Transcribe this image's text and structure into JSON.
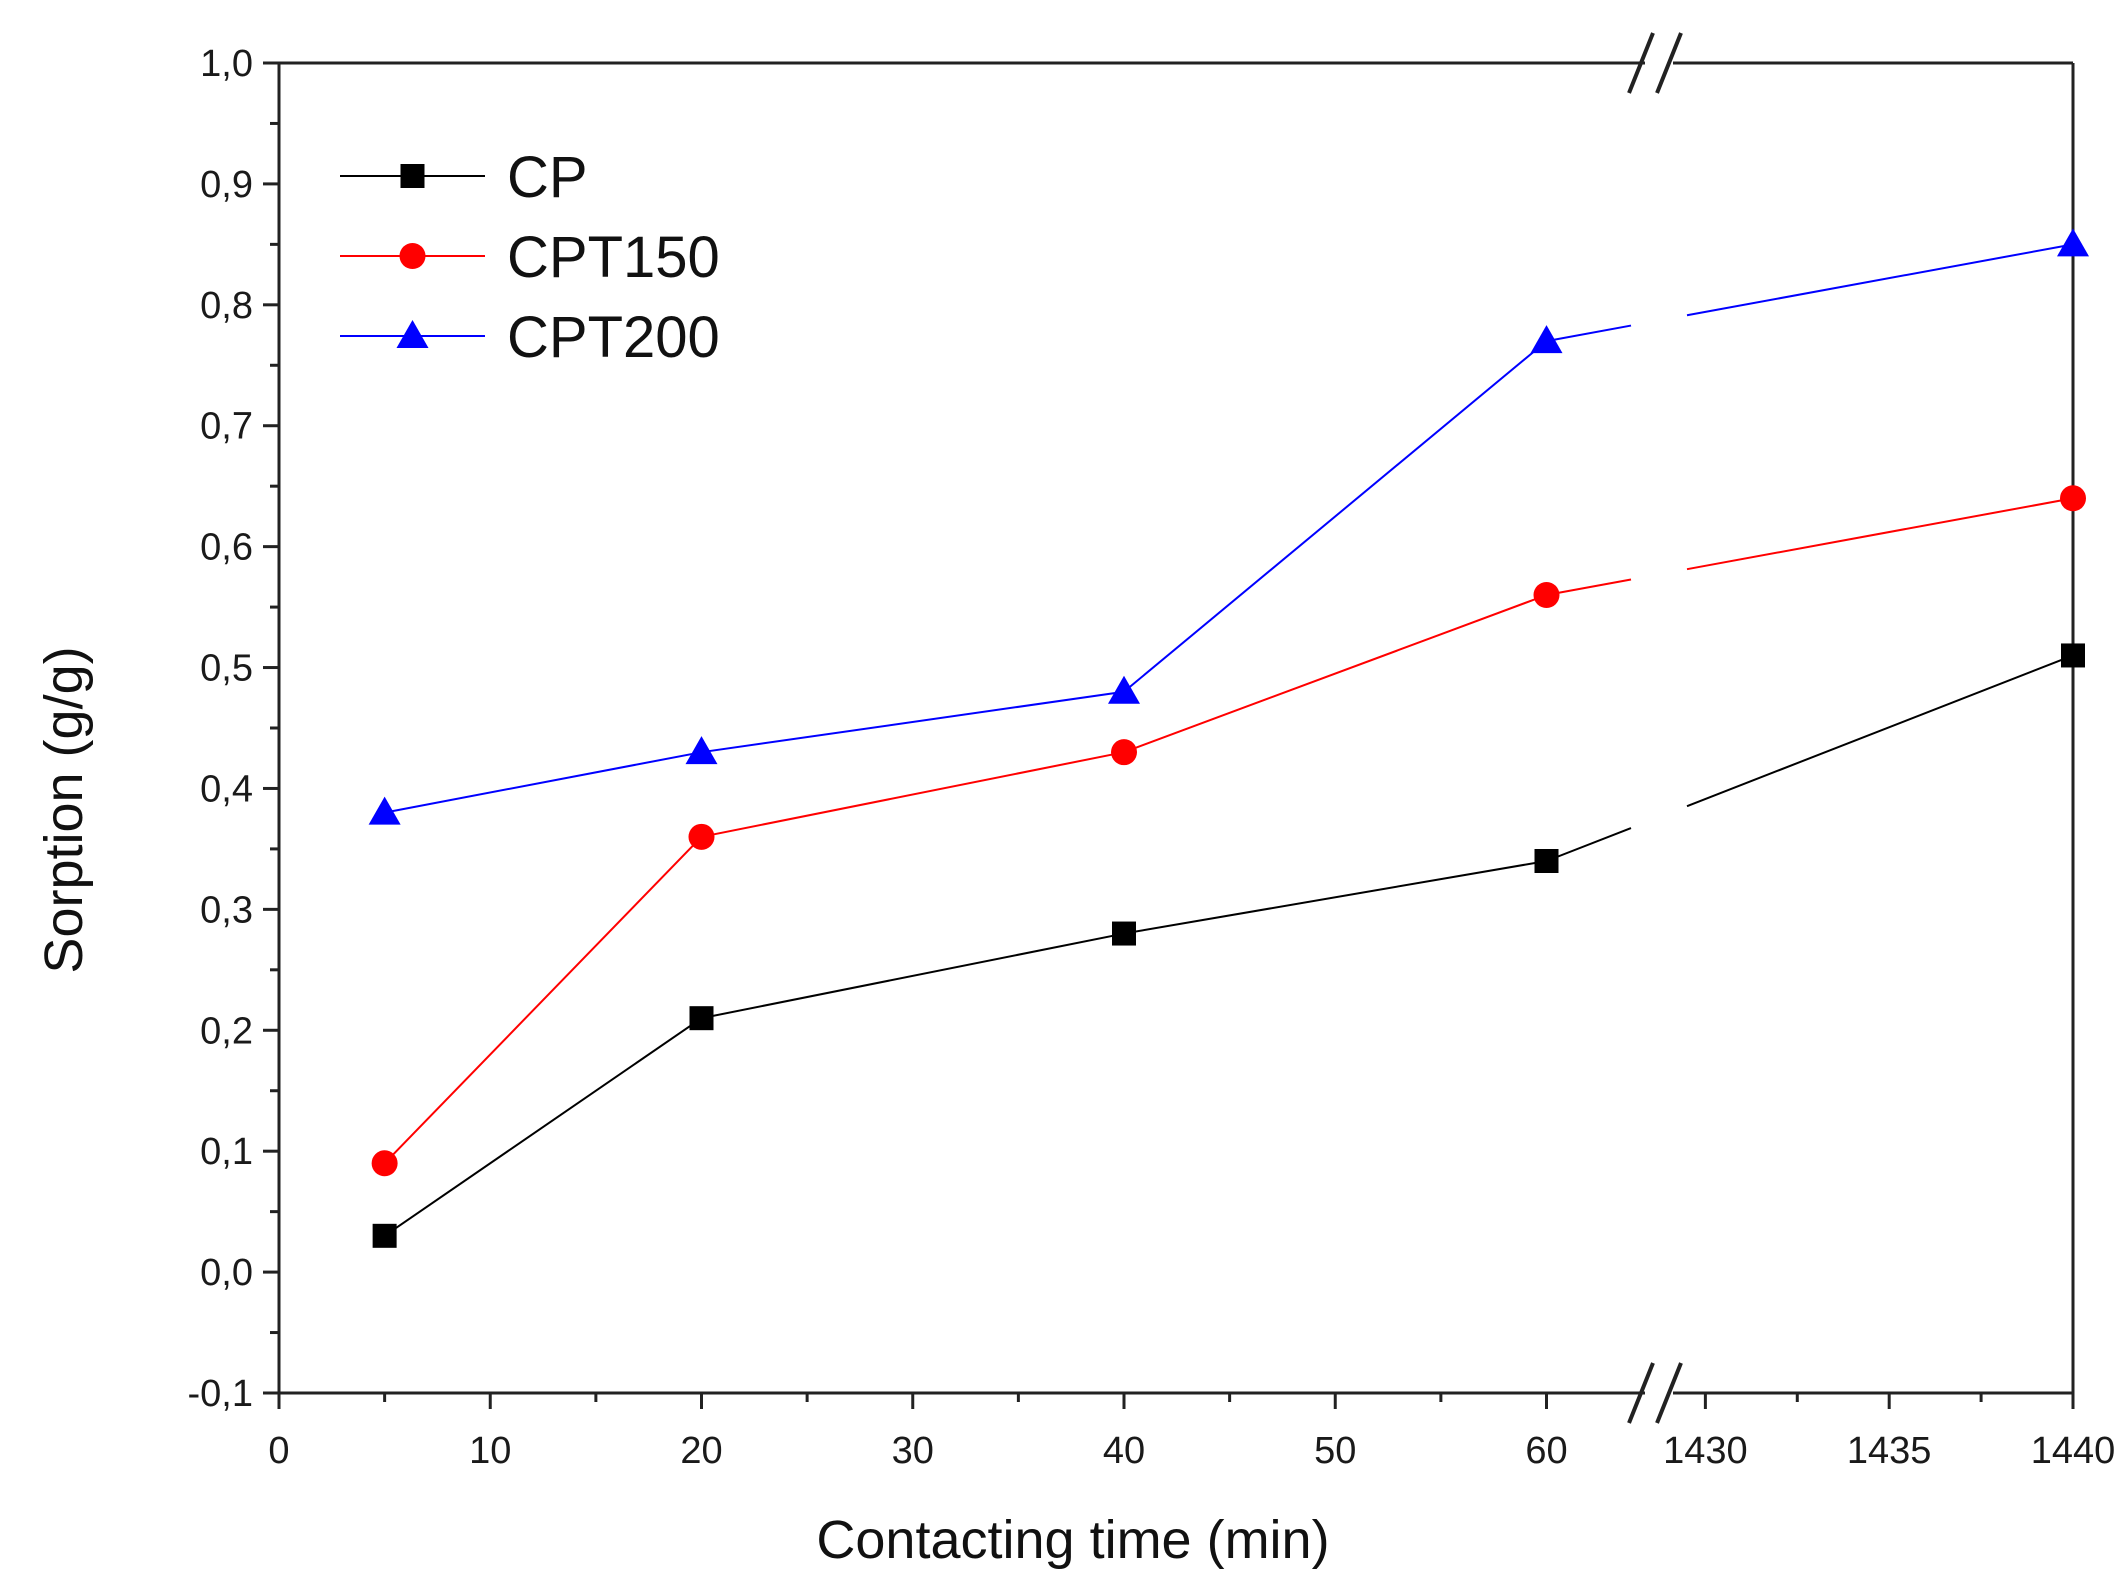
{
  "chart_data": {
    "type": "line",
    "title": "",
    "xlabel": "Contacting time (min)",
    "ylabel": "Sorption (g/g)",
    "ylim": [
      -0.1,
      1.0
    ],
    "y_ticks": [
      -0.1,
      0.0,
      0.1,
      0.2,
      0.3,
      0.4,
      0.5,
      0.6,
      0.7,
      0.8,
      0.9,
      1.0
    ],
    "y_tick_labels": [
      "-0,1",
      "0,0",
      "0,1",
      "0,2",
      "0,3",
      "0,4",
      "0,5",
      "0,6",
      "0,7",
      "0,8",
      "0,9",
      "1,0"
    ],
    "x_axis_break": true,
    "x_segments": [
      {
        "range": [
          0,
          64
        ],
        "ticks": [
          0,
          10,
          20,
          30,
          40,
          50,
          60
        ],
        "tick_labels": [
          "0",
          "10",
          "20",
          "30",
          "40",
          "50",
          "60"
        ]
      },
      {
        "range": [
          1429.5,
          1440
        ],
        "ticks": [
          1430,
          1435,
          1440
        ],
        "tick_labels": [
          "1430",
          "1435",
          "1440"
        ]
      }
    ],
    "x": [
      5,
      20,
      40,
      60,
      1440
    ],
    "series": [
      {
        "name": "CP",
        "color": "#000000",
        "marker": "square",
        "values": [
          0.03,
          0.21,
          0.28,
          0.34,
          0.51
        ]
      },
      {
        "name": "CPT150",
        "color": "#ff0000",
        "marker": "circle",
        "values": [
          0.09,
          0.36,
          0.43,
          0.56,
          0.64
        ]
      },
      {
        "name": "CPT200",
        "color": "#0000ff",
        "marker": "triangle",
        "values": [
          0.38,
          0.43,
          0.48,
          0.77,
          0.85
        ]
      }
    ],
    "legend_position": "top-left"
  }
}
